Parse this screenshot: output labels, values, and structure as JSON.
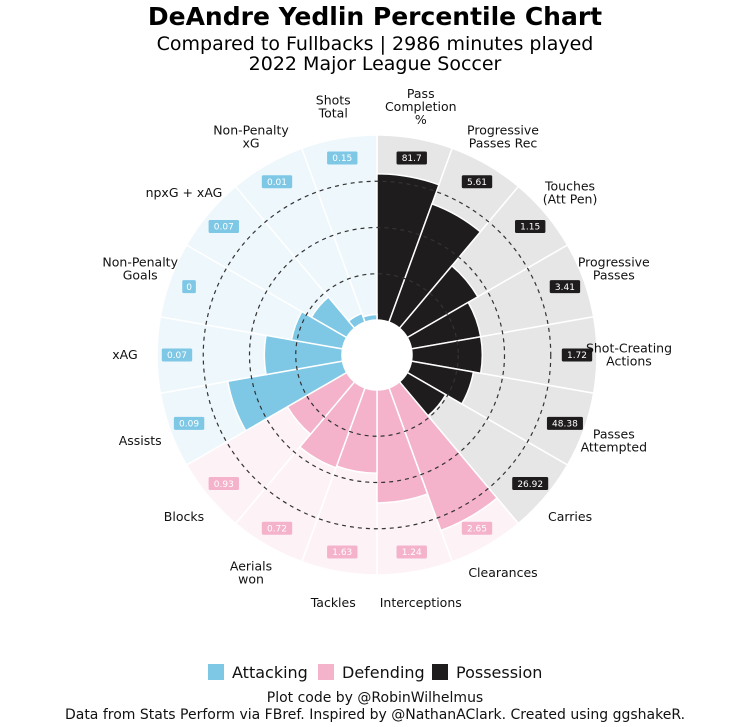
{
  "title": "DeAndre Yedlin Percentile Chart",
  "subtitle_1": "Compared to Fullbacks | 2986 minutes played",
  "subtitle_2": "2022 Major League Soccer",
  "footer_1": "Plot code by @RobinWilhelmus",
  "footer_2": "Data from Stats Perform via FBref. Inspired by @NathanAClark. Created using ggshakeR.",
  "chart_data": {
    "type": "polar-bar",
    "rlim": [
      0,
      100
    ],
    "gridlines": [
      25,
      50,
      75
    ],
    "legend_position": "bottom",
    "groups": [
      {
        "name": "Attacking",
        "color": "#7ec8e6",
        "bg": "#eef7fc"
      },
      {
        "name": "Defending",
        "color": "#f4b3cb",
        "bg": "#fdf3f7"
      },
      {
        "name": "Possession",
        "color": "#1f1c1d",
        "bg": "#e6e6e6"
      }
    ],
    "metrics": [
      {
        "label": "Pass\nCompletion\n%",
        "value": "81.7",
        "percentile": 79,
        "group": 2
      },
      {
        "label": "Progressive\nPasses Rec",
        "value": "5.61",
        "percentile": 68,
        "group": 2
      },
      {
        "label": "Touches\n(Att Pen)",
        "value": "1.15",
        "percentile": 44,
        "group": 2
      },
      {
        "label": "Progressive\nPasses",
        "value": "3.41",
        "percentile": 38,
        "group": 2
      },
      {
        "label": "Shot-Creating\nActions",
        "value": "1.72",
        "percentile": 38,
        "group": 2
      },
      {
        "label": "Passes\nAttempted",
        "value": "48.38",
        "percentile": 34,
        "group": 2
      },
      {
        "label": "Carries",
        "value": "26.92",
        "percentile": 24,
        "group": 2
      },
      {
        "label": "Clearances",
        "value": "2.65",
        "percentile": 82,
        "group": 1
      },
      {
        "label": "Interceptions",
        "value": "1.24",
        "percentile": 61,
        "group": 1
      },
      {
        "label": "Tackles",
        "value": "1.63",
        "percentile": 45,
        "group": 1
      },
      {
        "label": "Aerials\nwon",
        "value": "0.72",
        "percentile": 46,
        "group": 1
      },
      {
        "label": "Blocks",
        "value": "0.93",
        "percentile": 37,
        "group": 1
      },
      {
        "label": "Assists",
        "value": "0.09",
        "percentile": 63,
        "group": 0
      },
      {
        "label": "xAG",
        "value": "0.07",
        "percentile": 42,
        "group": 0
      },
      {
        "label": "Non-Penalty\nGoals",
        "value": "0",
        "percentile": 28,
        "group": 0
      },
      {
        "label": "npxG + xAG",
        "value": "0.07",
        "percentile": 22,
        "group": 0
      },
      {
        "label": "Non-Penalty\nxG",
        "value": "0.01",
        "percentile": 5,
        "group": 0
      },
      {
        "label": "Shots\nTotal",
        "value": "0.15",
        "percentile": 3,
        "group": 0
      }
    ]
  }
}
